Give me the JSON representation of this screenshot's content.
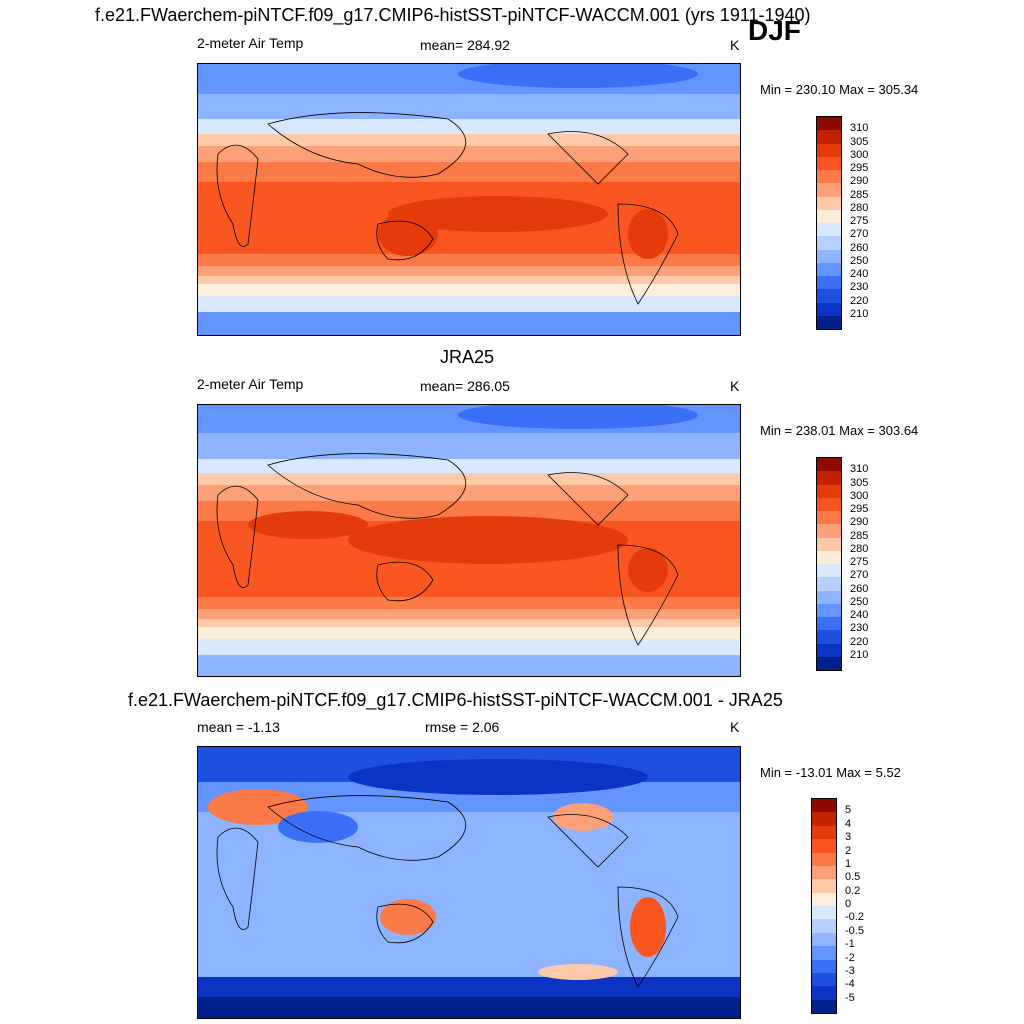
{
  "season_label": "DJF",
  "panels": [
    {
      "title": "f.e21.FWaerchem-piNTCF.f09_g17.CMIP6-histSST-piNTCF-WACCM.001 (yrs 1911-1940)",
      "left_label": "2-meter Air Temp",
      "center_label": "mean= 284.92",
      "units": "K",
      "minmax": "Min = 230.10 Max = 305.34",
      "colorbar": {
        "labels": [
          "310",
          "305",
          "300",
          "295",
          "290",
          "285",
          "280",
          "275",
          "270",
          "260",
          "250",
          "240",
          "230",
          "220",
          "210"
        ],
        "colors": [
          "#8c0a00",
          "#c42200",
          "#e53a0a",
          "#f8561e",
          "#fb7a47",
          "#fca07a",
          "#fdc9a9",
          "#fdeed9",
          "#d8e8ff",
          "#b7d0ff",
          "#8fb4ff",
          "#6494ff",
          "#3b6ff5",
          "#1d4fe0",
          "#0c34c4",
          "#00208c"
        ]
      },
      "map_type": "absolute"
    },
    {
      "title": "JRA25",
      "left_label": "2-meter Air Temp",
      "center_label": "mean= 286.05",
      "units": "K",
      "minmax": "Min = 238.01 Max = 303.64",
      "colorbar": {
        "labels": [
          "310",
          "305",
          "300",
          "295",
          "290",
          "285",
          "280",
          "275",
          "270",
          "260",
          "250",
          "240",
          "230",
          "220",
          "210"
        ],
        "colors": [
          "#8c0a00",
          "#c42200",
          "#e53a0a",
          "#f8561e",
          "#fb7a47",
          "#fca07a",
          "#fdc9a9",
          "#fdeed9",
          "#d8e8ff",
          "#b7d0ff",
          "#8fb4ff",
          "#6494ff",
          "#3b6ff5",
          "#1d4fe0",
          "#0c34c4",
          "#00208c"
        ]
      },
      "map_type": "absolute"
    },
    {
      "title": "f.e21.FWaerchem-piNTCF.f09_g17.CMIP6-histSST-piNTCF-WACCM.001 - JRA25",
      "left_label": "mean =  -1.13",
      "center_label": "rmse =   2.06",
      "units": "K",
      "minmax": "Min = -13.01 Max =   5.52",
      "colorbar": {
        "labels": [
          "5",
          "4",
          "3",
          "2",
          "1",
          "0.5",
          "0.2",
          "0",
          "-0.2",
          "-0.5",
          "-1",
          "-2",
          "-3",
          "-4",
          "-5"
        ],
        "colors": [
          "#8c0a00",
          "#c42200",
          "#e53a0a",
          "#f8561e",
          "#fb7a47",
          "#fca07a",
          "#fdc9a9",
          "#fdeed9",
          "#d8e8ff",
          "#b7d0ff",
          "#8fb4ff",
          "#6494ff",
          "#3b6ff5",
          "#1d4fe0",
          "#0c34c4",
          "#00208c"
        ]
      },
      "map_type": "difference"
    }
  ]
}
